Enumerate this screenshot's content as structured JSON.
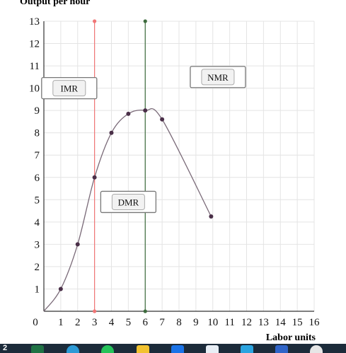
{
  "chart_data": {
    "type": "line",
    "ylabel": "Output per hour",
    "xlabel": "Labor units",
    "xlim": [
      0,
      16
    ],
    "ylim": [
      0,
      13
    ],
    "x_ticks": [
      "0",
      "1",
      "2",
      "3",
      "4",
      "5",
      "6",
      "7",
      "8",
      "9",
      "10",
      "11",
      "12",
      "13",
      "14",
      "15",
      "16"
    ],
    "y_ticks": [
      "1",
      "2",
      "3",
      "4",
      "5",
      "6",
      "7",
      "8",
      "9",
      "10",
      "11",
      "12",
      "13"
    ],
    "grid": true,
    "series": [
      {
        "points": [
          [
            1,
            1
          ],
          [
            2,
            3
          ],
          [
            3,
            6
          ],
          [
            4,
            8
          ],
          [
            5,
            8.85
          ],
          [
            6,
            9
          ],
          [
            7,
            8.6
          ],
          [
            9.9,
            4.25
          ]
        ],
        "color": "#7a6a78"
      }
    ],
    "vlines": [
      {
        "x": 3,
        "color": "#f07575"
      },
      {
        "x": 6,
        "color": "#3d6b3d"
      }
    ],
    "annotations": [
      {
        "label": "IMR",
        "x": 1.5,
        "y": 10
      },
      {
        "label": "NMR",
        "x": 10.3,
        "y": 10.5
      },
      {
        "label": "DMR",
        "x": 5.0,
        "y": 4.9
      }
    ]
  },
  "taskbar": {
    "badge": "2",
    "icons": [
      "excel-icon",
      "edge-icon",
      "whatsapp-icon",
      "folder-icon",
      "dropbox-icon",
      "app-icon",
      "app-icon-2",
      "word-icon",
      "app-icon-3"
    ]
  }
}
